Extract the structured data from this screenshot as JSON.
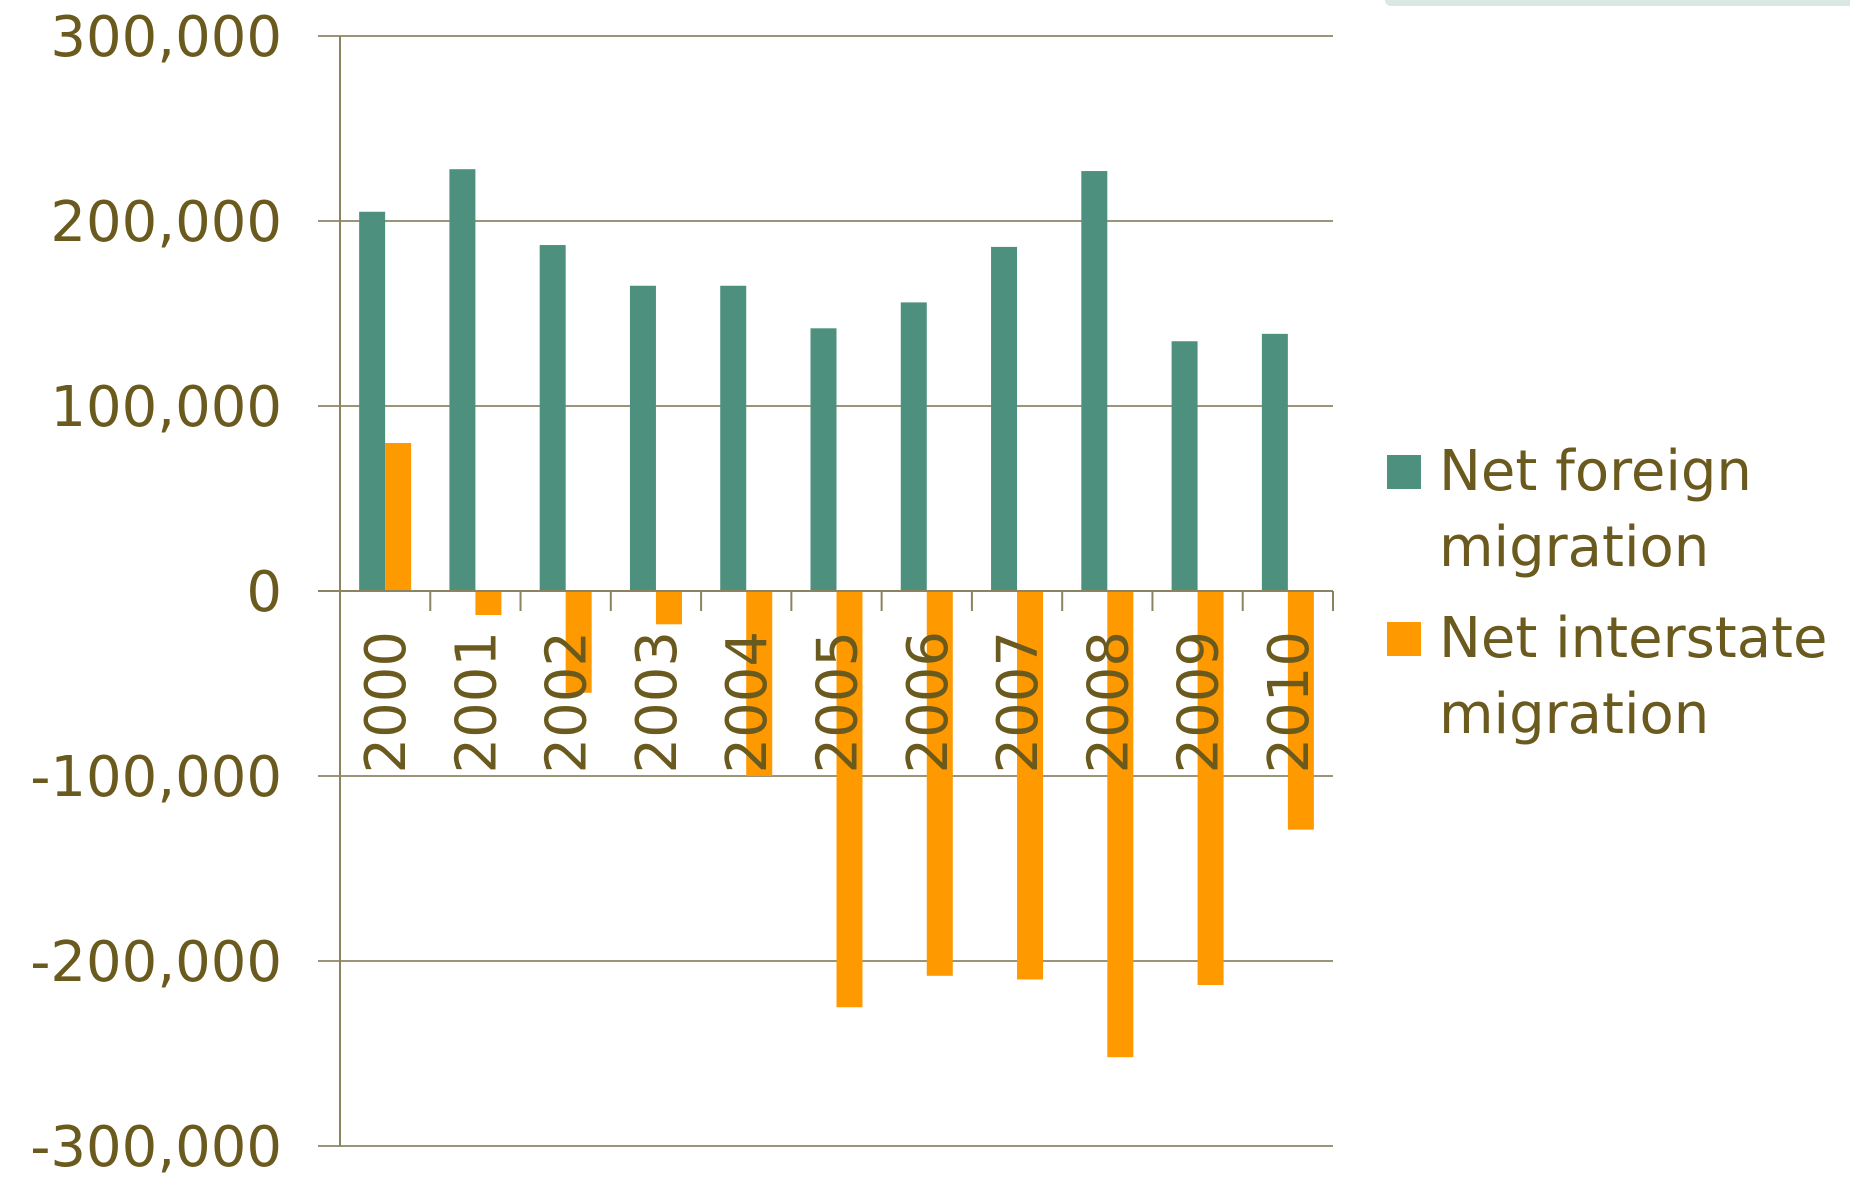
{
  "chart_data": {
    "type": "bar",
    "categories": [
      "2000",
      "2001",
      "2002",
      "2003",
      "2004",
      "2005",
      "2006",
      "2007",
      "2008",
      "2009",
      "2010"
    ],
    "series": [
      {
        "name": "Net foreign migration",
        "color": "#4e907e",
        "values": [
          205000,
          228000,
          187000,
          165000,
          165000,
          142000,
          156000,
          186000,
          227000,
          135000,
          139000
        ]
      },
      {
        "name": "Net interstate migration",
        "color": "#ff9900",
        "values": [
          80000,
          -13000,
          -55000,
          -18000,
          -100000,
          -225000,
          -208000,
          -210000,
          -252000,
          -213000,
          -129000
        ]
      }
    ],
    "ylim": [
      -300000,
      300000
    ],
    "yticks": [
      300000,
      200000,
      100000,
      0,
      -100000,
      -200000,
      -300000
    ],
    "ytick_labels": [
      "300,000",
      "200,000",
      "100,000",
      "0",
      "-100,000",
      "-200,000",
      "-300,000"
    ],
    "grid": true,
    "legend": "right",
    "title": "",
    "xlabel": "",
    "ylabel": ""
  }
}
